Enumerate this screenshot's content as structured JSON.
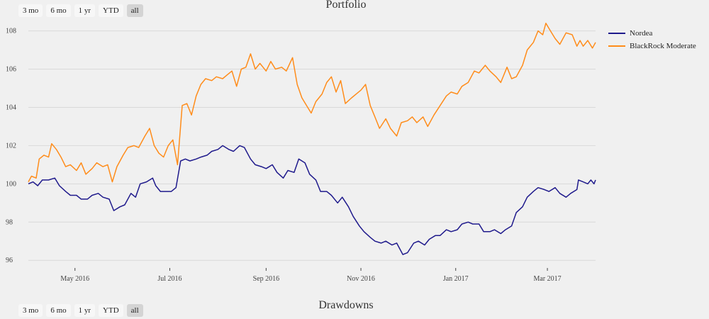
{
  "controls": {
    "ranges": [
      "3 mo",
      "6 mo",
      "1 yr",
      "YTD",
      "all"
    ],
    "active": "all"
  },
  "second_panel": {
    "title": "Drawdowns"
  },
  "chart_data": {
    "type": "line",
    "title": "Portfolio",
    "xlabel": "",
    "ylabel": "",
    "xlim": [
      "2016-04-01",
      "2017-04-01"
    ],
    "ylim": [
      95.6,
      108.8
    ],
    "y_ticks": [
      96,
      98,
      100,
      102,
      104,
      106,
      108
    ],
    "x_ticks": [
      {
        "date": "2016-05-01",
        "label": "May 2016"
      },
      {
        "date": "2016-07-01",
        "label": "Jul 2016"
      },
      {
        "date": "2016-09-01",
        "label": "Sep 2016"
      },
      {
        "date": "2016-11-01",
        "label": "Nov 2016"
      },
      {
        "date": "2017-01-01",
        "label": "Jan 2017"
      },
      {
        "date": "2017-03-01",
        "label": "Mar 2017"
      }
    ],
    "grid": true,
    "legend": "right",
    "series": [
      {
        "name": "Nordea",
        "color": "#1f1a8c",
        "points": [
          [
            "2016-04-01",
            100.0
          ],
          [
            "2016-04-04",
            100.1
          ],
          [
            "2016-04-07",
            99.9
          ],
          [
            "2016-04-10",
            100.2
          ],
          [
            "2016-04-14",
            100.2
          ],
          [
            "2016-04-18",
            100.3
          ],
          [
            "2016-04-21",
            99.9
          ],
          [
            "2016-04-25",
            99.6
          ],
          [
            "2016-04-28",
            99.4
          ],
          [
            "2016-05-02",
            99.4
          ],
          [
            "2016-05-05",
            99.2
          ],
          [
            "2016-05-09",
            99.2
          ],
          [
            "2016-05-12",
            99.4
          ],
          [
            "2016-05-16",
            99.5
          ],
          [
            "2016-05-19",
            99.3
          ],
          [
            "2016-05-23",
            99.2
          ],
          [
            "2016-05-26",
            98.6
          ],
          [
            "2016-05-30",
            98.8
          ],
          [
            "2016-06-02",
            98.9
          ],
          [
            "2016-06-06",
            99.5
          ],
          [
            "2016-06-09",
            99.3
          ],
          [
            "2016-06-12",
            100.0
          ],
          [
            "2016-06-16",
            100.1
          ],
          [
            "2016-06-20",
            100.3
          ],
          [
            "2016-06-22",
            99.9
          ],
          [
            "2016-06-25",
            99.6
          ],
          [
            "2016-06-28",
            99.6
          ],
          [
            "2016-07-02",
            99.6
          ],
          [
            "2016-07-05",
            99.8
          ],
          [
            "2016-07-08",
            101.2
          ],
          [
            "2016-07-11",
            101.3
          ],
          [
            "2016-07-14",
            101.2
          ],
          [
            "2016-07-18",
            101.3
          ],
          [
            "2016-07-21",
            101.4
          ],
          [
            "2016-07-25",
            101.5
          ],
          [
            "2016-07-28",
            101.7
          ],
          [
            "2016-08-01",
            101.8
          ],
          [
            "2016-08-04",
            102.0
          ],
          [
            "2016-08-08",
            101.8
          ],
          [
            "2016-08-11",
            101.7
          ],
          [
            "2016-08-15",
            102.0
          ],
          [
            "2016-08-18",
            101.9
          ],
          [
            "2016-08-22",
            101.3
          ],
          [
            "2016-08-25",
            101.0
          ],
          [
            "2016-08-29",
            100.9
          ],
          [
            "2016-09-01",
            100.8
          ],
          [
            "2016-09-05",
            101.0
          ],
          [
            "2016-09-08",
            100.6
          ],
          [
            "2016-09-12",
            100.3
          ],
          [
            "2016-09-15",
            100.7
          ],
          [
            "2016-09-19",
            100.6
          ],
          [
            "2016-09-22",
            101.3
          ],
          [
            "2016-09-26",
            101.1
          ],
          [
            "2016-09-29",
            100.5
          ],
          [
            "2016-10-03",
            100.2
          ],
          [
            "2016-10-06",
            99.6
          ],
          [
            "2016-10-10",
            99.6
          ],
          [
            "2016-10-13",
            99.4
          ],
          [
            "2016-10-17",
            99.0
          ],
          [
            "2016-10-20",
            99.3
          ],
          [
            "2016-10-24",
            98.8
          ],
          [
            "2016-10-27",
            98.3
          ],
          [
            "2016-10-31",
            97.8
          ],
          [
            "2016-11-03",
            97.5
          ],
          [
            "2016-11-07",
            97.2
          ],
          [
            "2016-11-10",
            97.0
          ],
          [
            "2016-11-14",
            96.9
          ],
          [
            "2016-11-17",
            97.0
          ],
          [
            "2016-11-21",
            96.8
          ],
          [
            "2016-11-24",
            96.9
          ],
          [
            "2016-11-28",
            96.3
          ],
          [
            "2016-12-01",
            96.4
          ],
          [
            "2016-12-05",
            96.9
          ],
          [
            "2016-12-08",
            97.0
          ],
          [
            "2016-12-12",
            96.8
          ],
          [
            "2016-12-15",
            97.1
          ],
          [
            "2016-12-19",
            97.3
          ],
          [
            "2016-12-22",
            97.3
          ],
          [
            "2016-12-26",
            97.6
          ],
          [
            "2016-12-29",
            97.5
          ],
          [
            "2017-01-02",
            97.6
          ],
          [
            "2017-01-05",
            97.9
          ],
          [
            "2017-01-09",
            98.0
          ],
          [
            "2017-01-12",
            97.9
          ],
          [
            "2017-01-16",
            97.9
          ],
          [
            "2017-01-19",
            97.5
          ],
          [
            "2017-01-23",
            97.5
          ],
          [
            "2017-01-26",
            97.6
          ],
          [
            "2017-01-30",
            97.4
          ],
          [
            "2017-02-02",
            97.6
          ],
          [
            "2017-02-06",
            97.8
          ],
          [
            "2017-02-09",
            98.5
          ],
          [
            "2017-02-13",
            98.8
          ],
          [
            "2017-02-16",
            99.3
          ],
          [
            "2017-02-20",
            99.6
          ],
          [
            "2017-02-23",
            99.8
          ],
          [
            "2017-02-27",
            99.7
          ],
          [
            "2017-03-02",
            99.6
          ],
          [
            "2017-03-06",
            99.8
          ],
          [
            "2017-03-09",
            99.5
          ],
          [
            "2017-03-13",
            99.3
          ],
          [
            "2017-03-16",
            99.5
          ],
          [
            "2017-03-20",
            99.7
          ],
          [
            "2017-03-21",
            100.2
          ],
          [
            "2017-03-24",
            100.1
          ],
          [
            "2017-03-27",
            100.0
          ],
          [
            "2017-03-29",
            100.2
          ],
          [
            "2017-03-31",
            100.0
          ],
          [
            "2017-04-01",
            100.2
          ]
        ]
      },
      {
        "name": "BlackRock Moderate",
        "color": "#ff8c1a",
        "points": [
          [
            "2016-04-01",
            100.1
          ],
          [
            "2016-04-03",
            100.4
          ],
          [
            "2016-04-06",
            100.3
          ],
          [
            "2016-04-08",
            101.3
          ],
          [
            "2016-04-11",
            101.5
          ],
          [
            "2016-04-14",
            101.4
          ],
          [
            "2016-04-16",
            102.1
          ],
          [
            "2016-04-19",
            101.8
          ],
          [
            "2016-04-22",
            101.4
          ],
          [
            "2016-04-25",
            100.9
          ],
          [
            "2016-04-28",
            101.0
          ],
          [
            "2016-05-02",
            100.7
          ],
          [
            "2016-05-05",
            101.1
          ],
          [
            "2016-05-08",
            100.5
          ],
          [
            "2016-05-12",
            100.8
          ],
          [
            "2016-05-15",
            101.1
          ],
          [
            "2016-05-19",
            100.9
          ],
          [
            "2016-05-22",
            101.0
          ],
          [
            "2016-05-25",
            100.1
          ],
          [
            "2016-05-28",
            100.9
          ],
          [
            "2016-06-01",
            101.5
          ],
          [
            "2016-06-04",
            101.9
          ],
          [
            "2016-06-08",
            102.0
          ],
          [
            "2016-06-11",
            101.9
          ],
          [
            "2016-06-15",
            102.5
          ],
          [
            "2016-06-18",
            102.9
          ],
          [
            "2016-06-21",
            102.0
          ],
          [
            "2016-06-24",
            101.6
          ],
          [
            "2016-06-27",
            101.4
          ],
          [
            "2016-06-30",
            102.0
          ],
          [
            "2016-07-03",
            102.3
          ],
          [
            "2016-07-06",
            101.0
          ],
          [
            "2016-07-09",
            104.1
          ],
          [
            "2016-07-12",
            104.2
          ],
          [
            "2016-07-15",
            103.6
          ],
          [
            "2016-07-18",
            104.6
          ],
          [
            "2016-07-21",
            105.2
          ],
          [
            "2016-07-24",
            105.5
          ],
          [
            "2016-07-28",
            105.4
          ],
          [
            "2016-07-31",
            105.6
          ],
          [
            "2016-08-04",
            105.5
          ],
          [
            "2016-08-07",
            105.7
          ],
          [
            "2016-08-10",
            105.9
          ],
          [
            "2016-08-13",
            105.1
          ],
          [
            "2016-08-16",
            106.0
          ],
          [
            "2016-08-19",
            106.1
          ],
          [
            "2016-08-22",
            106.8
          ],
          [
            "2016-08-25",
            106.0
          ],
          [
            "2016-08-28",
            106.3
          ],
          [
            "2016-09-01",
            105.9
          ],
          [
            "2016-09-04",
            106.4
          ],
          [
            "2016-09-07",
            106.0
          ],
          [
            "2016-09-11",
            106.1
          ],
          [
            "2016-09-14",
            105.9
          ],
          [
            "2016-09-18",
            106.6
          ],
          [
            "2016-09-21",
            105.2
          ],
          [
            "2016-09-24",
            104.5
          ],
          [
            "2016-09-27",
            104.1
          ],
          [
            "2016-09-30",
            103.7
          ],
          [
            "2016-10-03",
            104.3
          ],
          [
            "2016-10-07",
            104.7
          ],
          [
            "2016-10-10",
            105.3
          ],
          [
            "2016-10-13",
            105.6
          ],
          [
            "2016-10-16",
            104.8
          ],
          [
            "2016-10-19",
            105.4
          ],
          [
            "2016-10-22",
            104.2
          ],
          [
            "2016-10-26",
            104.5
          ],
          [
            "2016-10-29",
            104.7
          ],
          [
            "2016-11-01",
            104.9
          ],
          [
            "2016-11-04",
            105.2
          ],
          [
            "2016-11-07",
            104.1
          ],
          [
            "2016-11-10",
            103.5
          ],
          [
            "2016-11-13",
            102.9
          ],
          [
            "2016-11-17",
            103.4
          ],
          [
            "2016-11-20",
            102.9
          ],
          [
            "2016-11-24",
            102.5
          ],
          [
            "2016-11-27",
            103.2
          ],
          [
            "2016-12-01",
            103.3
          ],
          [
            "2016-12-04",
            103.5
          ],
          [
            "2016-12-07",
            103.2
          ],
          [
            "2016-12-11",
            103.5
          ],
          [
            "2016-12-14",
            103.0
          ],
          [
            "2016-12-18",
            103.6
          ],
          [
            "2016-12-22",
            104.1
          ],
          [
            "2016-12-26",
            104.6
          ],
          [
            "2016-12-29",
            104.8
          ],
          [
            "2017-01-02",
            104.7
          ],
          [
            "2017-01-05",
            105.1
          ],
          [
            "2017-01-09",
            105.3
          ],
          [
            "2017-01-13",
            105.9
          ],
          [
            "2017-01-16",
            105.8
          ],
          [
            "2017-01-20",
            106.2
          ],
          [
            "2017-01-23",
            105.9
          ],
          [
            "2017-01-27",
            105.6
          ],
          [
            "2017-01-30",
            105.3
          ],
          [
            "2017-02-03",
            106.1
          ],
          [
            "2017-02-06",
            105.5
          ],
          [
            "2017-02-09",
            105.6
          ],
          [
            "2017-02-13",
            106.2
          ],
          [
            "2017-02-16",
            107.0
          ],
          [
            "2017-02-20",
            107.4
          ],
          [
            "2017-02-23",
            108.0
          ],
          [
            "2017-02-26",
            107.8
          ],
          [
            "2017-02-28",
            108.4
          ],
          [
            "2017-03-03",
            108.0
          ],
          [
            "2017-03-06",
            107.6
          ],
          [
            "2017-03-09",
            107.3
          ],
          [
            "2017-03-13",
            107.9
          ],
          [
            "2017-03-17",
            107.8
          ],
          [
            "2017-03-20",
            107.2
          ],
          [
            "2017-03-22",
            107.5
          ],
          [
            "2017-03-24",
            107.2
          ],
          [
            "2017-03-27",
            107.5
          ],
          [
            "2017-03-30",
            107.1
          ],
          [
            "2017-04-01",
            107.4
          ]
        ]
      }
    ]
  }
}
